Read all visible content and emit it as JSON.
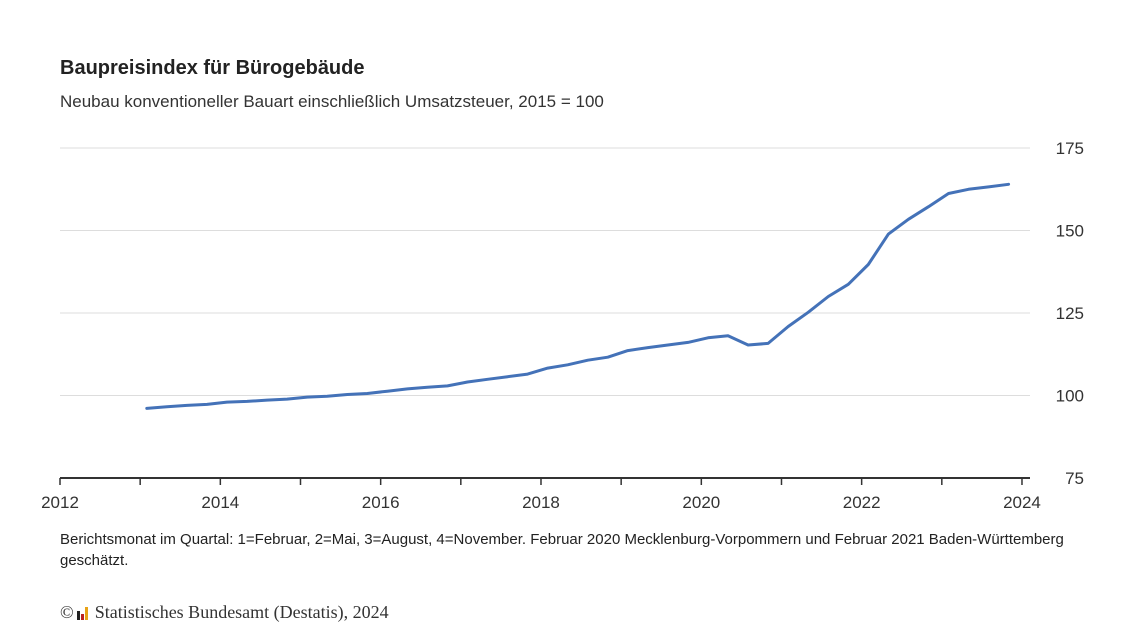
{
  "title": "Baupreisindex für Bürogebäude",
  "subtitle": "Neubau konventioneller Bauart einschließlich Umsatzsteuer, 2015 = 100",
  "note": "Berichtsmonat im Quartal: 1=Februar, 2=Mai, 3=August, 4=November. Februar 2020 Mecklenburg-Vorpommern und Februar 2021 Baden-Württemberg geschätzt.",
  "footer": {
    "copyright": "©",
    "source": "Statistisches Bundesamt (Destatis), 2024"
  },
  "colors": {
    "line": "#4472b8",
    "grid": "#dddddd",
    "axis": "#333333"
  },
  "chart_data": {
    "type": "line",
    "title": "Baupreisindex für Bürogebäude",
    "subtitle": "Neubau konventioneller Bauart einschließlich Umsatzsteuer, 2015 = 100",
    "xlabel": "",
    "ylabel": "",
    "xlim": [
      2012,
      2024.1
    ],
    "ylim": [
      75,
      175
    ],
    "x_ticks": [
      2012,
      2014,
      2016,
      2018,
      2020,
      2022,
      2024
    ],
    "y_ticks": [
      75,
      100,
      125,
      150,
      175
    ],
    "grid": "horizontal",
    "series": [
      {
        "x": [
          "2013-02",
          "2013-05",
          "2013-08",
          "2013-11",
          "2014-02",
          "2014-05",
          "2014-08",
          "2014-11",
          "2015-02",
          "2015-05",
          "2015-08",
          "2015-11",
          "2016-02",
          "2016-05",
          "2016-08",
          "2016-11",
          "2017-02",
          "2017-05",
          "2017-08",
          "2017-11",
          "2018-02",
          "2018-05",
          "2018-08",
          "2018-11",
          "2019-02",
          "2019-05",
          "2019-08",
          "2019-11",
          "2020-02",
          "2020-05",
          "2020-08",
          "2020-11",
          "2021-02",
          "2021-05",
          "2021-08",
          "2021-11",
          "2022-02",
          "2022-05",
          "2022-08",
          "2022-11",
          "2023-02",
          "2023-05",
          "2023-08",
          "2023-11"
        ],
        "y": [
          96.1,
          96.6,
          97.0,
          97.3,
          98.0,
          98.2,
          98.6,
          98.9,
          99.5,
          99.8,
          100.3,
          100.6,
          101.3,
          102.0,
          102.5,
          102.9,
          104.1,
          104.9,
          105.7,
          106.5,
          108.3,
          109.3,
          110.7,
          111.6,
          113.6,
          114.5,
          115.3,
          116.1,
          117.5,
          118.1,
          115.3,
          115.8,
          120.9,
          125.2,
          130.0,
          133.7,
          139.7,
          148.9,
          153.4,
          157.2,
          161.2,
          162.5,
          163.2,
          164.0
        ]
      }
    ]
  }
}
